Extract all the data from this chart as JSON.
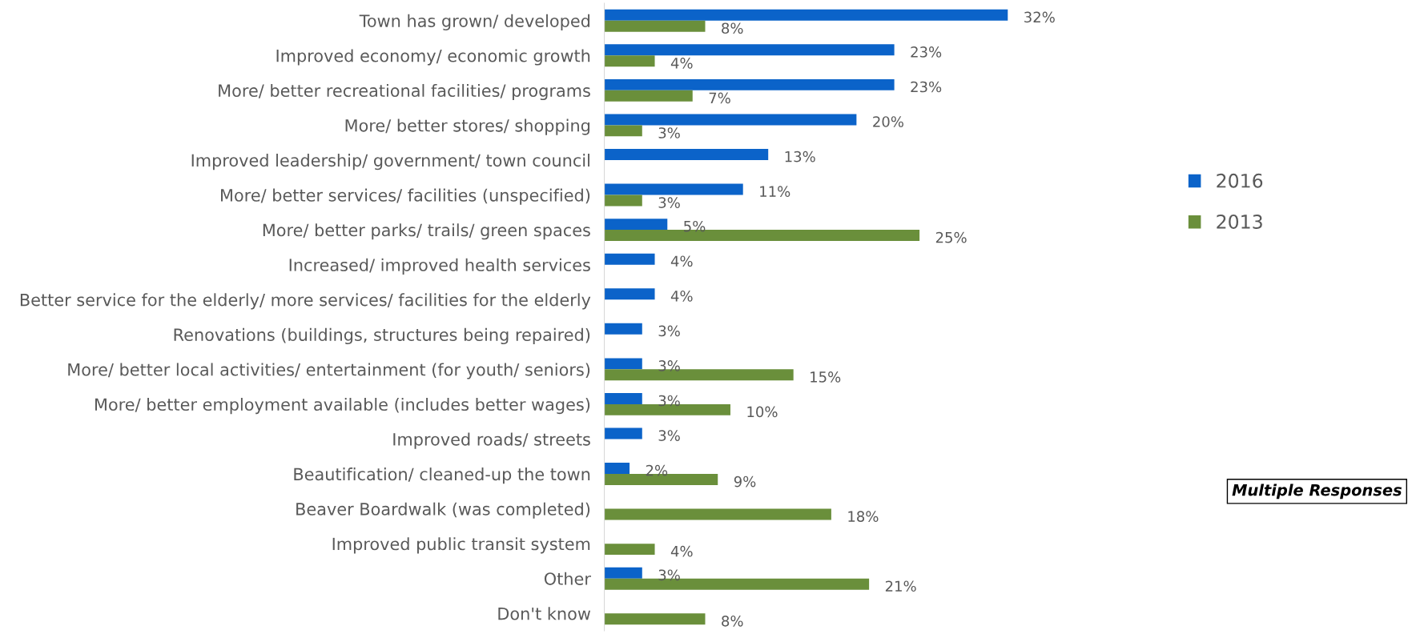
{
  "chart_data": {
    "type": "bar",
    "orientation": "horizontal",
    "tick_labels": "y",
    "legend": "right",
    "grid": false,
    "categories": [
      "Town has grown/ developed",
      "Improved economy/ economic growth",
      "More/ better recreational facilities/ programs",
      "More/ better stores/ shopping",
      "Improved leadership/ government/ town council",
      "More/ better services/ facilities (unspecified)",
      "More/ better parks/ trails/ green spaces",
      "Increased/ improved health services",
      "Better service for the elderly/ more services/ facilities for the elderly",
      "Renovations (buildings, structures being repaired)",
      "More/ better local activities/ entertainment (for youth/ seniors)",
      "More/ better employment available (includes better wages)",
      "Improved roads/ streets",
      "Beautification/ cleaned-up the town",
      "Beaver Boardwalk (was completed)",
      "Improved public transit system",
      "Other",
      "Don't know"
    ],
    "series": [
      {
        "name": "2016",
        "color": "#0b63c9",
        "values": [
          32,
          23,
          23,
          20,
          13,
          11,
          5,
          4,
          4,
          3,
          3,
          3,
          3,
          2,
          null,
          null,
          3,
          null
        ],
        "value_labels": [
          "32%",
          "23%",
          "23%",
          "20%",
          "13%",
          "11%",
          "5%",
          "4%",
          "4%",
          "3%",
          "3%",
          "3%",
          "3%",
          "2%",
          null,
          null,
          "3%",
          null
        ]
      },
      {
        "name": "2013",
        "color": "#6a8f3b",
        "values": [
          8,
          4,
          7,
          3,
          null,
          3,
          25,
          null,
          null,
          null,
          15,
          10,
          null,
          9,
          18,
          4,
          21,
          8
        ],
        "value_labels": [
          "8%",
          "4%",
          "7%",
          "3%",
          null,
          "3%",
          "25%",
          null,
          null,
          null,
          "15%",
          "10%",
          null,
          "9%",
          "18%",
          "4%",
          "21%",
          "8%"
        ]
      }
    ],
    "annotations": [
      "Multiple Responses"
    ]
  }
}
